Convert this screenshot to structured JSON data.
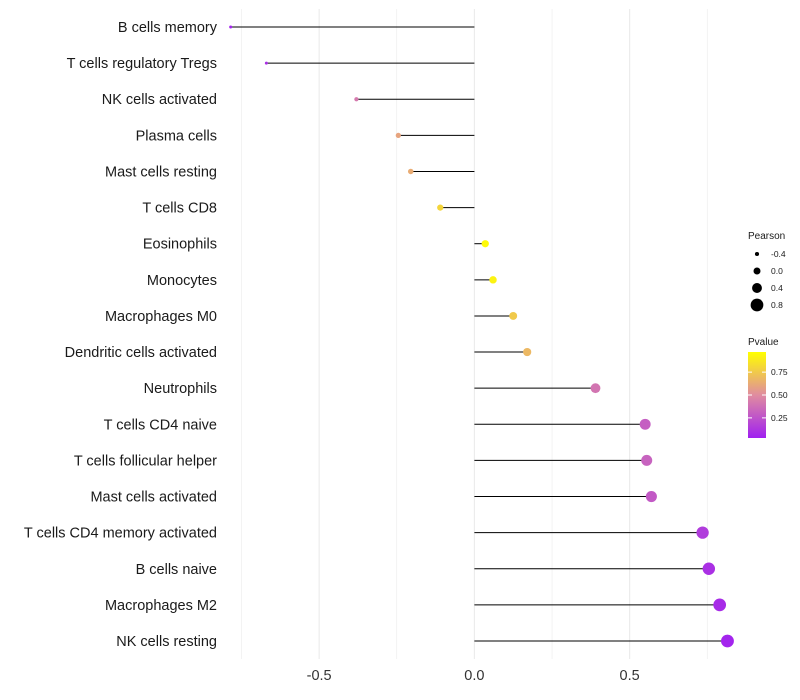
{
  "chart_data": {
    "type": "lollipop",
    "title": "",
    "xlabel": "",
    "ylabel": "",
    "xlim": [
      -0.8,
      0.82
    ],
    "xticks": [
      -0.5,
      0.0,
      0.5
    ],
    "xtick_labels": [
      "-0.5",
      "0.0",
      "0.5"
    ],
    "grid": true,
    "categories": [
      "B cells memory",
      "T cells regulatory  Tregs",
      "NK cells activated",
      "Plasma cells",
      "Mast cells resting",
      "T cells CD8",
      "Eosinophils",
      "Monocytes",
      "Macrophages M0",
      "Dendritic cells activated",
      "Neutrophils",
      "T cells CD4 naive",
      "T cells follicular helper",
      "Mast cells activated",
      "T cells CD4 memory activated",
      "B cells naive",
      "Macrophages M2",
      "NK cells resting"
    ],
    "series": [
      {
        "name": "Pearson",
        "values": [
          -0.785,
          -0.67,
          -0.38,
          -0.245,
          -0.205,
          -0.11,
          0.035,
          0.06,
          0.125,
          0.17,
          0.39,
          0.55,
          0.555,
          0.57,
          0.735,
          0.755,
          0.79,
          0.815
        ]
      },
      {
        "name": "Pvalue",
        "values": [
          0.05,
          0.1,
          0.42,
          0.6,
          0.63,
          0.8,
          0.95,
          0.92,
          0.75,
          0.68,
          0.4,
          0.3,
          0.32,
          0.28,
          0.15,
          0.1,
          0.08,
          0.05
        ]
      }
    ],
    "legend": {
      "placement": "right",
      "size": {
        "title": "Pearson",
        "labels": [
          "-0.4",
          "0.0",
          "0.4",
          "0.8"
        ],
        "values": [
          -0.4,
          0.0,
          0.4,
          0.8
        ]
      },
      "color": {
        "title": "Pvalue",
        "labels": [
          "0.75",
          "0.50",
          "0.25"
        ],
        "values": [
          0.75,
          0.5,
          0.25
        ],
        "range": [
          0.03,
          0.97
        ],
        "low_color": "#A020F0",
        "mid_color": "#E08CA0",
        "high_color": "#FFFF00"
      }
    },
    "colors": {
      "stem": "#000000",
      "grid": "#EBEBEB"
    }
  }
}
